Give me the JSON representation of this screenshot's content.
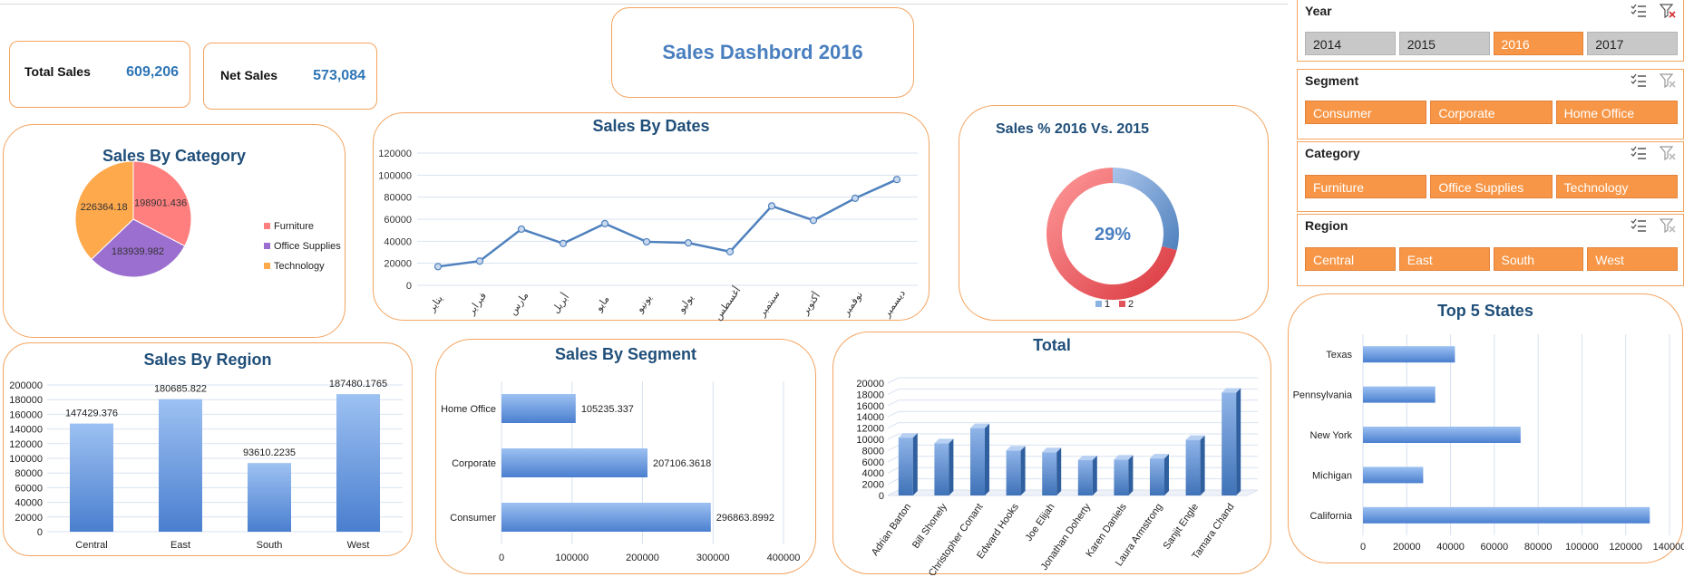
{
  "kpis": {
    "total_sales_label": "Total Sales",
    "total_sales_value": "609,206",
    "net_sales_label": "Net Sales",
    "net_sales_value": "573,084"
  },
  "dashboard_title": "Sales Dashbord 2016",
  "colors": {
    "accent": "#f79646",
    "border": "#f4a460",
    "title": "#1f4e79",
    "kpi": "#2e75b6",
    "bar": "#4f81bd",
    "furniture": "#ff7f7f",
    "office": "#9b6fd0",
    "technology": "#ffa94d"
  },
  "slicers": {
    "year": {
      "title": "Year",
      "items": [
        {
          "label": "2014",
          "selected": false
        },
        {
          "label": "2015",
          "selected": false
        },
        {
          "label": "2016",
          "selected": true
        },
        {
          "label": "2017",
          "selected": false
        }
      ]
    },
    "segment": {
      "title": "Segment",
      "items": [
        {
          "label": "Consumer",
          "selected": true
        },
        {
          "label": "Corporate",
          "selected": true
        },
        {
          "label": "Home Office",
          "selected": true
        }
      ]
    },
    "category": {
      "title": "Category",
      "items": [
        {
          "label": "Furniture",
          "selected": true
        },
        {
          "label": "Office Supplies",
          "selected": true
        },
        {
          "label": "Technology",
          "selected": true
        }
      ]
    },
    "region": {
      "title": "Region",
      "items": [
        {
          "label": "Central",
          "selected": true
        },
        {
          "label": "East",
          "selected": true
        },
        {
          "label": "South",
          "selected": true
        },
        {
          "label": "West",
          "selected": true
        }
      ]
    }
  },
  "chart_data": [
    {
      "id": "category",
      "type": "pie",
      "title": "Sales By Category",
      "categories": [
        "Furniture",
        "Office Supplies",
        "Technology"
      ],
      "values": [
        198901.436,
        183939.982,
        226364.18
      ],
      "labels": [
        "198901.436",
        "183939.982",
        "226364.18"
      ],
      "legend": "right"
    },
    {
      "id": "dates",
      "type": "line",
      "title": "Sales By Dates",
      "categories": [
        "يناير",
        "فبراير",
        "مارس",
        "أبريل",
        "مايو",
        "يونيو",
        "يوليو",
        "أغسطس",
        "سبتمبر",
        "أكتوبر",
        "نوفمبر",
        "ديسمبر"
      ],
      "values": [
        17000,
        22000,
        51000,
        38000,
        56000,
        39500,
        38500,
        30500,
        72000,
        59000,
        79000,
        96000
      ],
      "ylim": [
        0,
        120000
      ],
      "yticks": [
        "0",
        "20000",
        "40000",
        "60000",
        "80000",
        "100000",
        "120000"
      ],
      "grid": true
    },
    {
      "id": "pct",
      "type": "pie",
      "title": "Sales % 2016 Vs. 2015",
      "categories": [
        "1",
        "2"
      ],
      "values": [
        29,
        71
      ],
      "center_label": "29%",
      "legend": "bottom"
    },
    {
      "id": "region",
      "type": "bar",
      "title": "Sales By Region",
      "categories": [
        "Central",
        "East",
        "South",
        "West"
      ],
      "values": [
        147429.376,
        180685.822,
        93610.2235,
        187480.1765
      ],
      "labels": [
        "147429.376",
        "180685.822",
        "93610.2235",
        "187480.1765"
      ],
      "ylim": [
        0,
        200000
      ],
      "yticks": [
        "0",
        "20000",
        "40000",
        "60000",
        "80000",
        "100000",
        "120000",
        "140000",
        "160000",
        "180000",
        "200000"
      ],
      "grid": true
    },
    {
      "id": "segment",
      "type": "bar",
      "orientation": "horizontal",
      "title": "Sales By Segment",
      "categories": [
        "Home Office",
        "Corporate",
        "Consumer"
      ],
      "values": [
        105235.337,
        207106.3618,
        296863.8992
      ],
      "labels": [
        "105235.337",
        "207106.3618",
        "296863.8992"
      ],
      "xlim": [
        0,
        400000
      ],
      "xticks": [
        "0",
        "100000",
        "200000",
        "300000",
        "400000"
      ],
      "grid": true
    },
    {
      "id": "total",
      "type": "bar",
      "title": "Total",
      "categories": [
        "Adrian Barton",
        "Bill Shonely",
        "Christopher Conant",
        "Edward Hooks",
        "Joe Elijah",
        "Jonathan Doherty",
        "Karen Daniels",
        "Laura Armstrong",
        "Sanjit Engle",
        "Tamara Chand"
      ],
      "values": [
        10300,
        9300,
        12000,
        8000,
        7700,
        6300,
        6400,
        6600,
        9900,
        18300
      ],
      "ylim": [
        0,
        20000
      ],
      "yticks": [
        "0",
        "2000",
        "4000",
        "6000",
        "8000",
        "10000",
        "12000",
        "14000",
        "16000",
        "18000",
        "20000"
      ],
      "grid": true
    },
    {
      "id": "states",
      "type": "bar",
      "orientation": "horizontal",
      "title": "Top 5 States",
      "categories": [
        "Texas",
        "Pennsylvania",
        "New York",
        "Michigan",
        "California"
      ],
      "values": [
        42000,
        33000,
        72000,
        27500,
        131000
      ],
      "xlim": [
        0,
        140000
      ],
      "xticks": [
        "0",
        "20000",
        "40000",
        "60000",
        "80000",
        "100000",
        "120000",
        "140000"
      ],
      "grid": true
    }
  ]
}
